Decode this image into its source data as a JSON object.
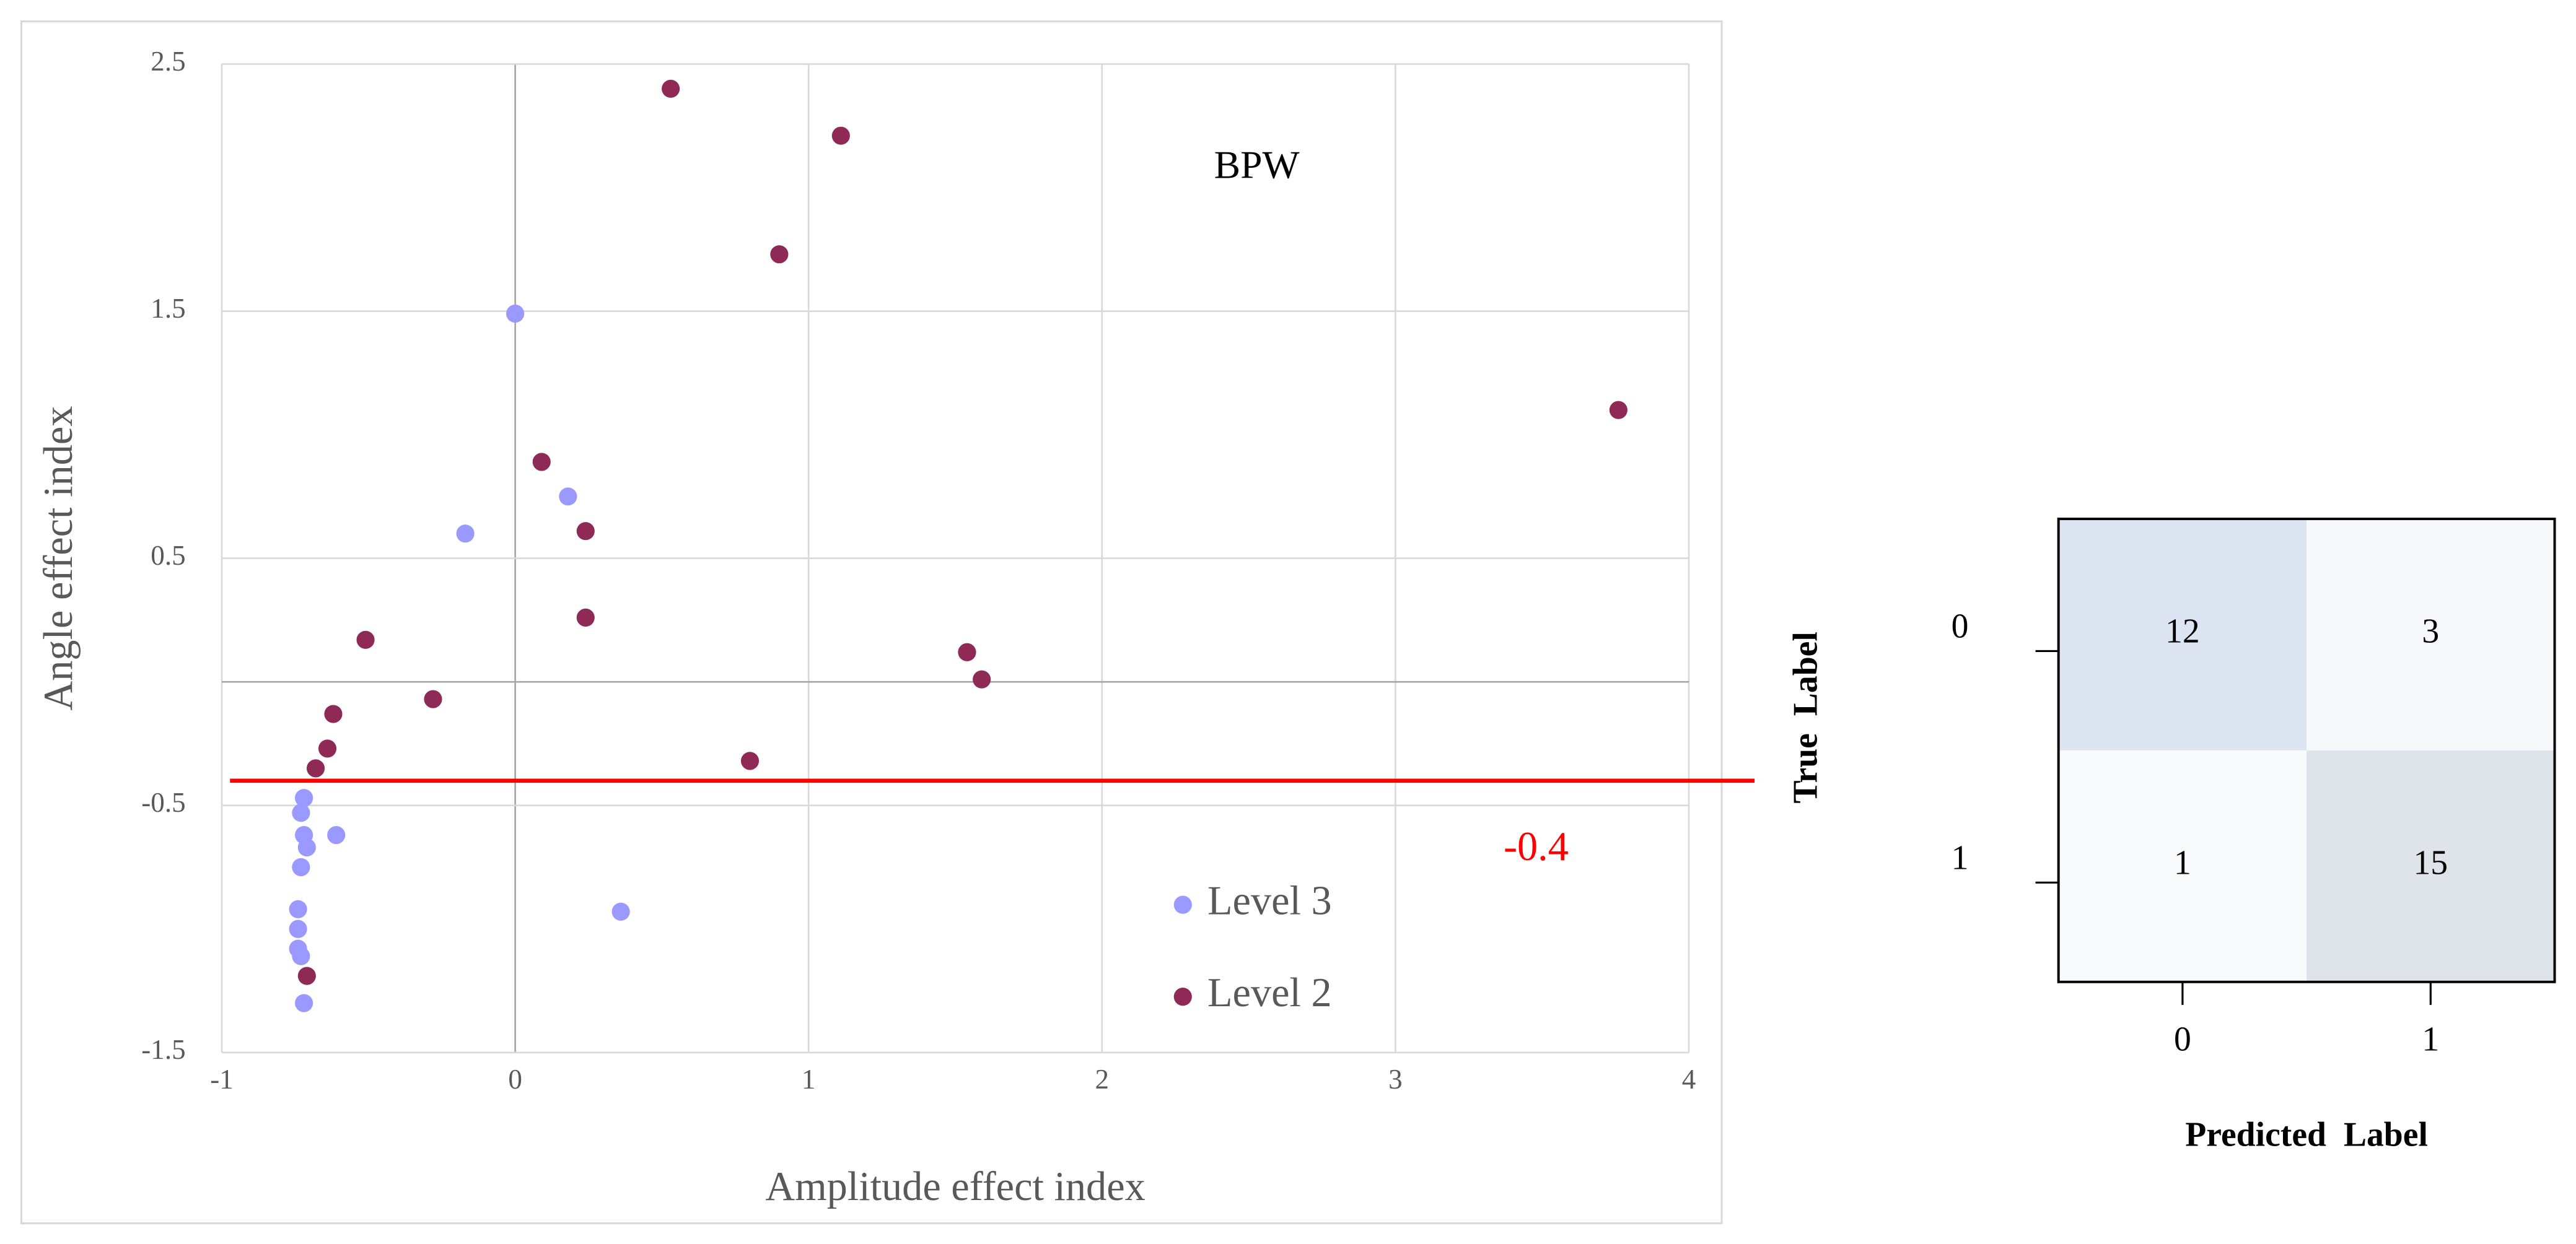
{
  "chart_data": [
    {
      "type": "scatter",
      "xlabel": "Amplitude effect index",
      "ylabel": "Angle effect index",
      "annotation": "BPW",
      "xlim": [
        -1,
        4
      ],
      "xticks": [
        -1,
        0,
        1,
        2,
        3,
        4
      ],
      "ylim": [
        -1.5,
        2.5
      ],
      "yticks": [
        -1.5,
        -0.5,
        0.5,
        1.5,
        2.5
      ],
      "grid": true,
      "legend": "lower right",
      "threshold": -0.4,
      "threshold_color": "#ff0000",
      "series": [
        {
          "name": "Level 3",
          "color": "#9999ff",
          "x": [
            0.0,
            0.18,
            -0.17,
            -0.72,
            -0.73,
            -0.61,
            -0.72,
            -0.71,
            -0.73,
            0.36,
            -0.74,
            -0.74,
            -0.74,
            -0.73,
            -0.72
          ],
          "values": [
            1.49,
            0.75,
            0.6,
            -0.47,
            -0.53,
            -0.62,
            -0.62,
            -0.67,
            -0.75,
            -0.93,
            -0.92,
            -1.0,
            -1.08,
            -1.11,
            -1.3
          ]
        },
        {
          "name": "Level 2",
          "color": "#8e2a55",
          "x": [
            0.53,
            1.11,
            0.9,
            3.76,
            0.09,
            0.24,
            0.24,
            -0.51,
            1.54,
            1.59,
            -0.28,
            -0.62,
            -0.64,
            -0.68,
            0.8,
            -0.71
          ],
          "values": [
            2.4,
            2.21,
            1.73,
            1.1,
            0.89,
            0.61,
            0.26,
            0.17,
            0.12,
            0.01,
            -0.07,
            -0.13,
            -0.27,
            -0.35,
            -0.32,
            -1.19
          ]
        }
      ]
    },
    {
      "type": "heatmap",
      "xlabel": "Predicted  Label",
      "ylabel": "True  Label",
      "x_categories": [
        "0",
        "1"
      ],
      "y_categories": [
        "0",
        "1"
      ],
      "values": [
        [
          12,
          3
        ],
        [
          1,
          15
        ]
      ],
      "colors": [
        [
          "#dde5f2",
          "#f6f8fc"
        ],
        [
          "#f8fafc",
          "#dfe3ea"
        ]
      ]
    }
  ]
}
